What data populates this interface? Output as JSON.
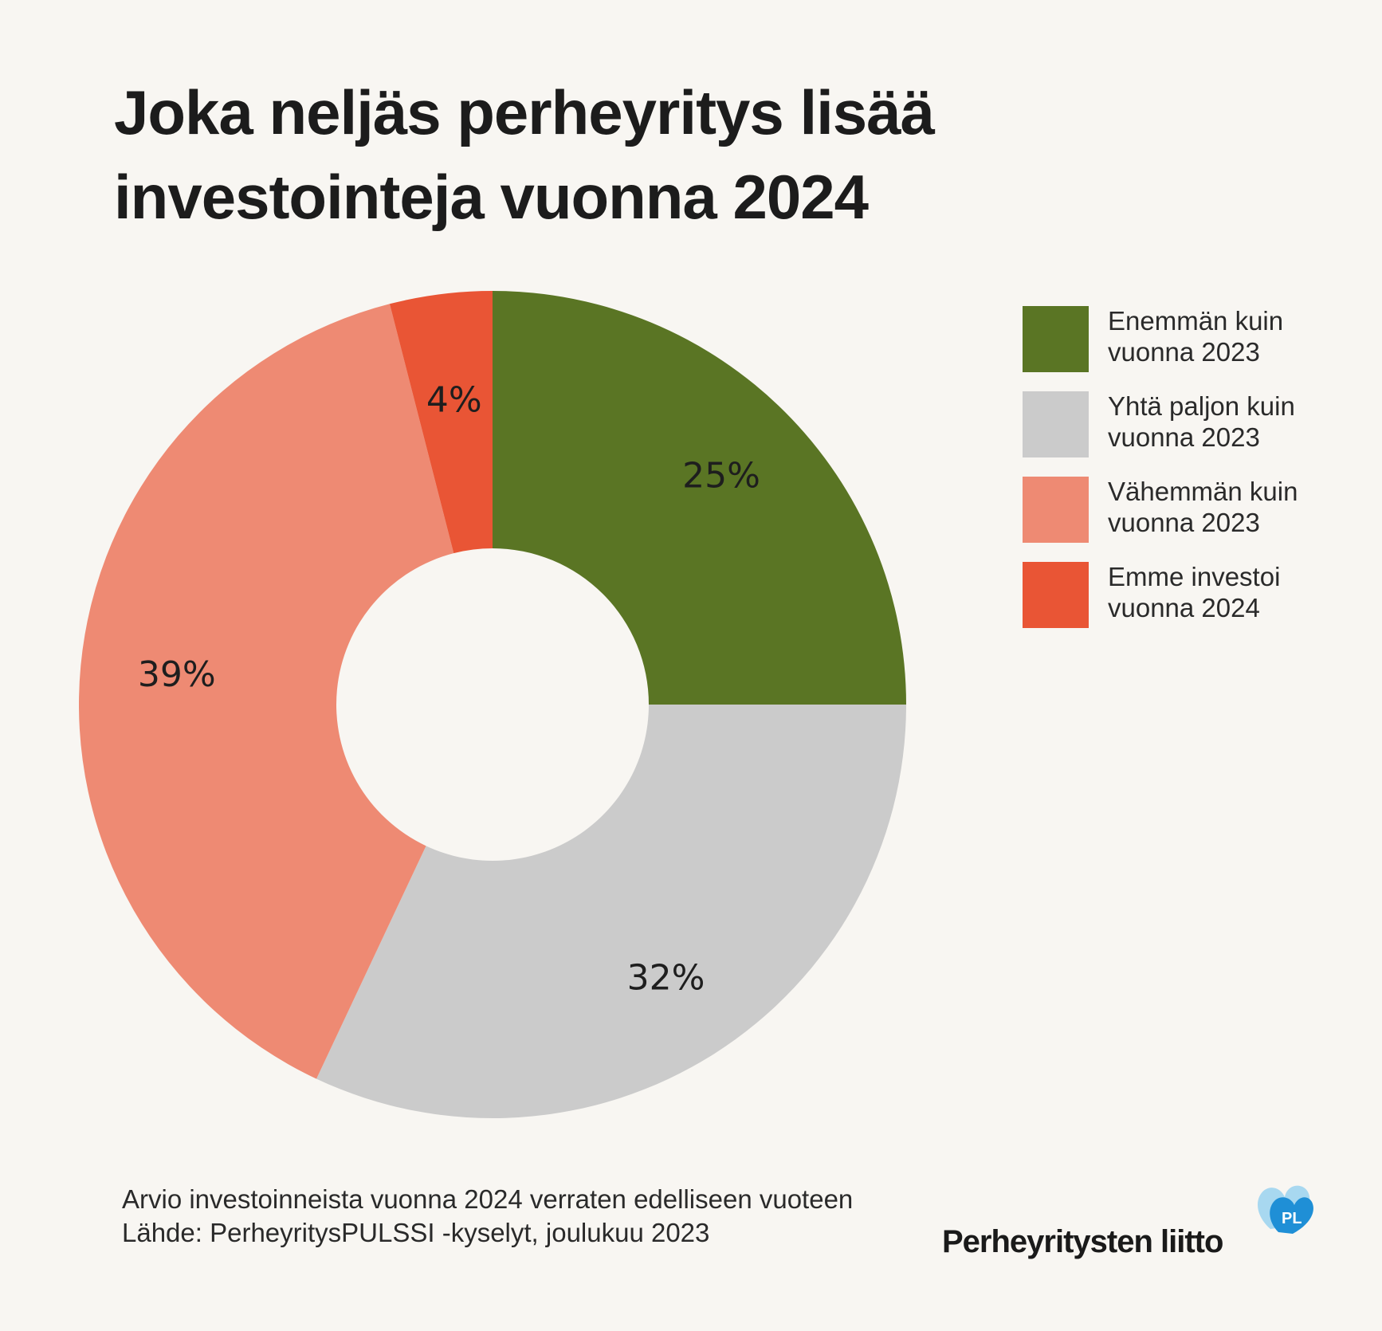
{
  "title_lines": [
    "Joka neljäs perheyritys lisää",
    "investointeja vuonna 2024"
  ],
  "chart_data": {
    "type": "pie",
    "donut": true,
    "categories": [
      "Enemmän kuin vuonna 2023",
      "Yhtä paljon kuin vuonna 2023",
      "Vähemmän kuin vuonna 2023",
      "Emme investoi vuonna 2024"
    ],
    "values": [
      25,
      32,
      39,
      4
    ],
    "labels": [
      "25%",
      "32%",
      "39%",
      "4%"
    ],
    "colors": [
      "#5a7524",
      "#cbcbcb",
      "#ee8a73",
      "#e95535"
    ],
    "legend_position": "right"
  },
  "legend": [
    {
      "line1": "Enemmän kuin",
      "line2": "vuonna 2023",
      "color": "#5a7524"
    },
    {
      "line1": "Yhtä paljon kuin",
      "line2": "vuonna 2023",
      "color": "#cbcbcb"
    },
    {
      "line1": "Vähemmän kuin",
      "line2": "vuonna 2023",
      "color": "#ee8a73"
    },
    {
      "line1": "Emme investoi",
      "line2": "vuonna 2024",
      "color": "#e95535"
    }
  ],
  "footer": {
    "note": "Arvio investoinneista vuonna 2024 verraten edelliseen vuoteen",
    "source": "Lähde: PerheyritysPULSSI -kyselyt, joulukuu 2023"
  },
  "logo": {
    "text": "Perheyritysten liitto",
    "mark_text": "PL",
    "mark_colors": [
      "#a8d8f0",
      "#1f8fd6"
    ]
  }
}
